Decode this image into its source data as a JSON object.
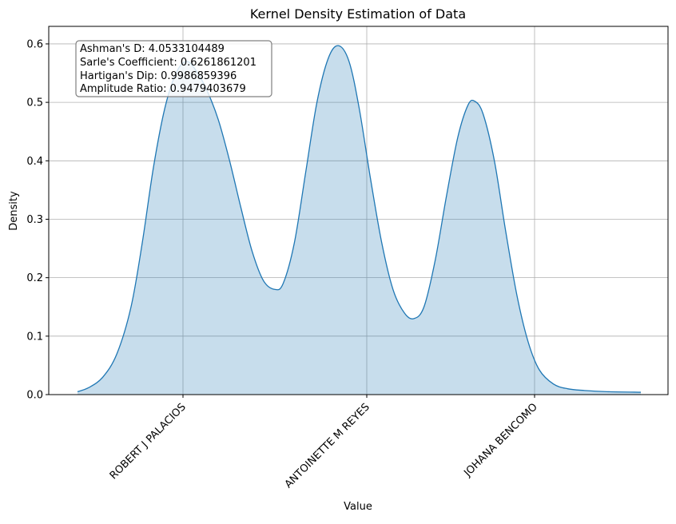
{
  "chart_data": {
    "type": "area",
    "title": "Kernel Density Estimation of Data",
    "xlabel": "Value",
    "ylabel": "Density",
    "ylim": [
      0,
      0.63
    ],
    "y_ticks": [
      0.0,
      0.1,
      0.2,
      0.3,
      0.4,
      0.5,
      0.6
    ],
    "y_tick_labels": [
      "0.0",
      "0.1",
      "0.2",
      "0.3",
      "0.4",
      "0.5",
      "0.6"
    ],
    "x_tick_labels": [
      "ROBERT J PALACIOS",
      "ANTOINETTE M REYES",
      "JOHANA BENCOMO"
    ],
    "x_tick_rotation": 45,
    "grid": true,
    "colors": {
      "line": "#1f77b4",
      "fill": "#1f77b4",
      "grid": "#b0b0b0"
    },
    "annotation": {
      "lines": [
        "Ashman's D: 4.0533104489",
        "Sarle's Coefficient: 0.6261861201",
        "Hartigan's Dip: 0.9986859396",
        "Amplitude Ratio: 0.9479403679"
      ],
      "placement": "top-left"
    },
    "series": [
      {
        "curve": [
          [
            0.0,
            0.005
          ],
          [
            0.02,
            0.012
          ],
          [
            0.045,
            0.03
          ],
          [
            0.07,
            0.07
          ],
          [
            0.095,
            0.15
          ],
          [
            0.115,
            0.26
          ],
          [
            0.135,
            0.39
          ],
          [
            0.155,
            0.49
          ],
          [
            0.175,
            0.55
          ],
          [
            0.193,
            0.57
          ],
          [
            0.21,
            0.555
          ],
          [
            0.23,
            0.52
          ],
          [
            0.25,
            0.47
          ],
          [
            0.27,
            0.4
          ],
          [
            0.29,
            0.32
          ],
          [
            0.31,
            0.245
          ],
          [
            0.33,
            0.195
          ],
          [
            0.35,
            0.18
          ],
          [
            0.365,
            0.19
          ],
          [
            0.385,
            0.26
          ],
          [
            0.405,
            0.38
          ],
          [
            0.425,
            0.5
          ],
          [
            0.445,
            0.575
          ],
          [
            0.463,
            0.597
          ],
          [
            0.482,
            0.57
          ],
          [
            0.5,
            0.49
          ],
          [
            0.52,
            0.37
          ],
          [
            0.54,
            0.26
          ],
          [
            0.56,
            0.18
          ],
          [
            0.58,
            0.14
          ],
          [
            0.597,
            0.13
          ],
          [
            0.615,
            0.15
          ],
          [
            0.635,
            0.23
          ],
          [
            0.655,
            0.34
          ],
          [
            0.675,
            0.44
          ],
          [
            0.693,
            0.495
          ],
          [
            0.705,
            0.502
          ],
          [
            0.72,
            0.48
          ],
          [
            0.74,
            0.4
          ],
          [
            0.76,
            0.28
          ],
          [
            0.78,
            0.17
          ],
          [
            0.8,
            0.09
          ],
          [
            0.82,
            0.042
          ],
          [
            0.845,
            0.018
          ],
          [
            0.87,
            0.01
          ],
          [
            0.9,
            0.007
          ],
          [
            0.94,
            0.005
          ],
          [
            1.0,
            0.004
          ]
        ]
      }
    ]
  }
}
